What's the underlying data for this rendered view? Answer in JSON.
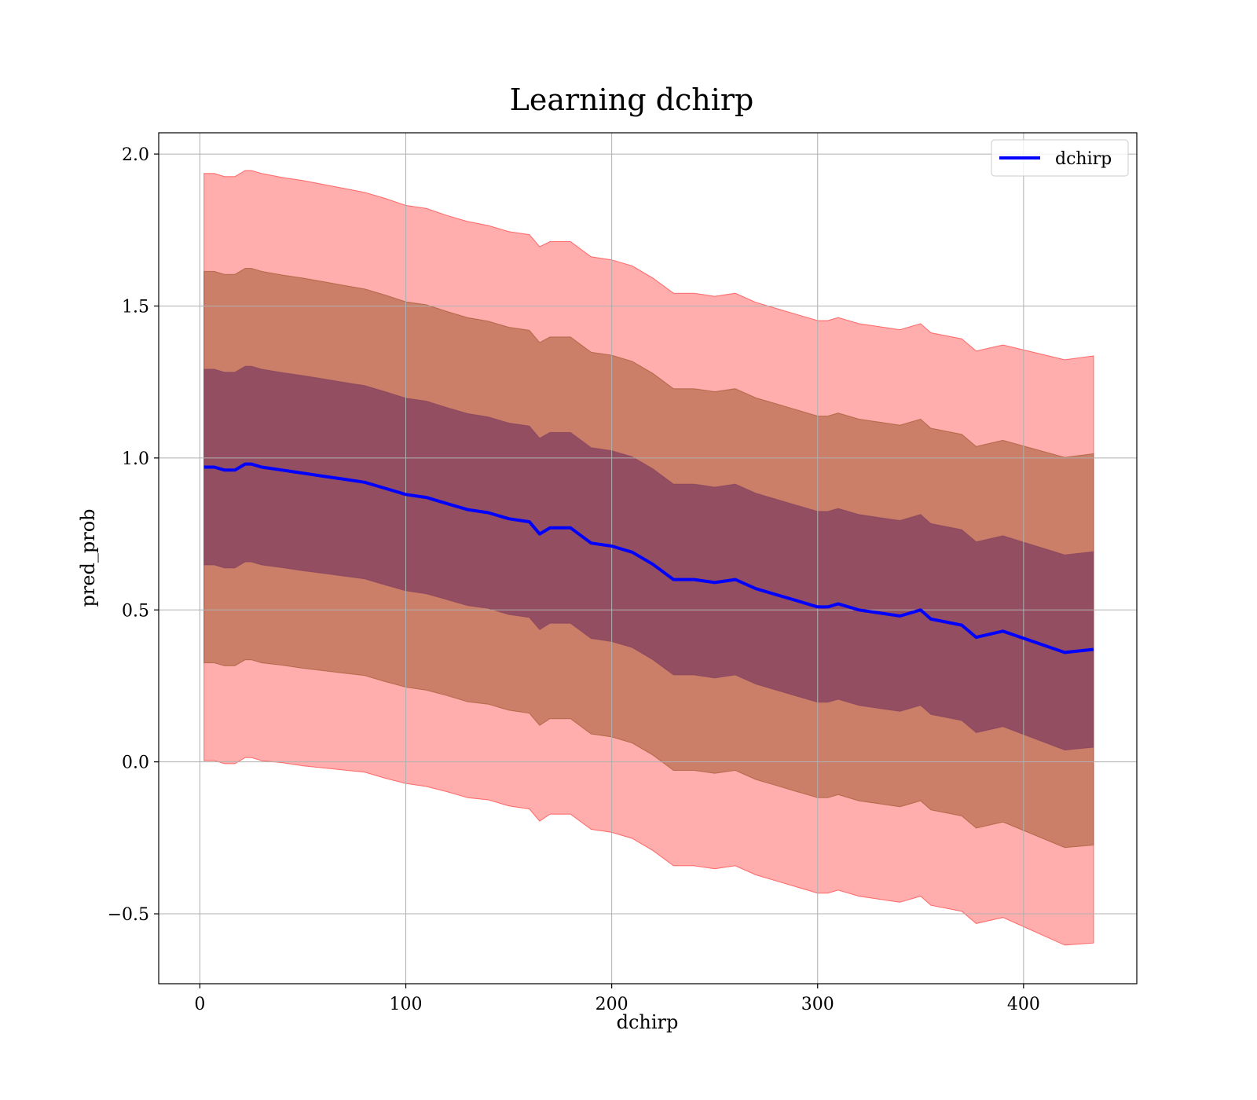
{
  "chart_data": {
    "type": "area",
    "title": "Learning dchirp",
    "xlabel": "dchirp",
    "ylabel": "pred_prob",
    "xlim": [
      -20,
      455
    ],
    "ylim": [
      -0.73,
      2.07
    ],
    "x_ticks": [
      0,
      100,
      200,
      300,
      400
    ],
    "x_tick_labels": [
      "0",
      "100",
      "200",
      "300",
      "400"
    ],
    "y_ticks": [
      -0.5,
      0.0,
      0.5,
      1.0,
      1.5,
      2.0
    ],
    "y_tick_labels": [
      "−0.5",
      "0.0",
      "0.5",
      "1.0",
      "1.5",
      "2.0"
    ],
    "grid": true,
    "legend": {
      "position": "top-right",
      "entries": [
        "dchirp"
      ]
    },
    "colors": {
      "mean_line": "#0000ff",
      "band_outer": "#ff0000",
      "band_middle": "#8b4513",
      "band_inner": "#7a3a5e"
    },
    "band_note": "Shaded bands show mean ± 1, 2 and 3 standard deviations",
    "series": [
      {
        "name": "dchirp",
        "x": [
          2,
          7,
          12,
          17,
          22,
          25,
          30,
          40,
          50,
          60,
          70,
          80,
          90,
          100,
          110,
          120,
          130,
          140,
          150,
          160,
          165,
          170,
          180,
          190,
          200,
          210,
          220,
          230,
          240,
          250,
          260,
          270,
          280,
          290,
          300,
          305,
          310,
          320,
          330,
          340,
          350,
          355,
          370,
          377,
          390,
          420,
          434
        ],
        "y": [
          0.97,
          0.97,
          0.96,
          0.96,
          0.98,
          0.98,
          0.97,
          0.96,
          0.95,
          0.94,
          0.93,
          0.92,
          0.9,
          0.88,
          0.87,
          0.85,
          0.83,
          0.82,
          0.8,
          0.79,
          0.75,
          0.77,
          0.77,
          0.72,
          0.71,
          0.69,
          0.65,
          0.6,
          0.6,
          0.59,
          0.6,
          0.57,
          0.55,
          0.53,
          0.51,
          0.51,
          0.52,
          0.5,
          0.49,
          0.48,
          0.5,
          0.47,
          0.45,
          0.41,
          0.43,
          0.36,
          0.37
        ],
        "std": [
          0.322,
          0.322,
          0.322,
          0.322,
          0.322,
          0.322,
          0.322,
          0.321,
          0.321,
          0.32,
          0.319,
          0.318,
          0.318,
          0.317,
          0.317,
          0.316,
          0.316,
          0.315,
          0.315,
          0.315,
          0.315,
          0.314,
          0.314,
          0.314,
          0.314,
          0.314,
          0.314,
          0.314,
          0.314,
          0.314,
          0.314,
          0.314,
          0.314,
          0.314,
          0.314,
          0.314,
          0.314,
          0.314,
          0.314,
          0.314,
          0.314,
          0.314,
          0.314,
          0.314,
          0.314,
          0.321,
          0.322
        ]
      }
    ]
  }
}
